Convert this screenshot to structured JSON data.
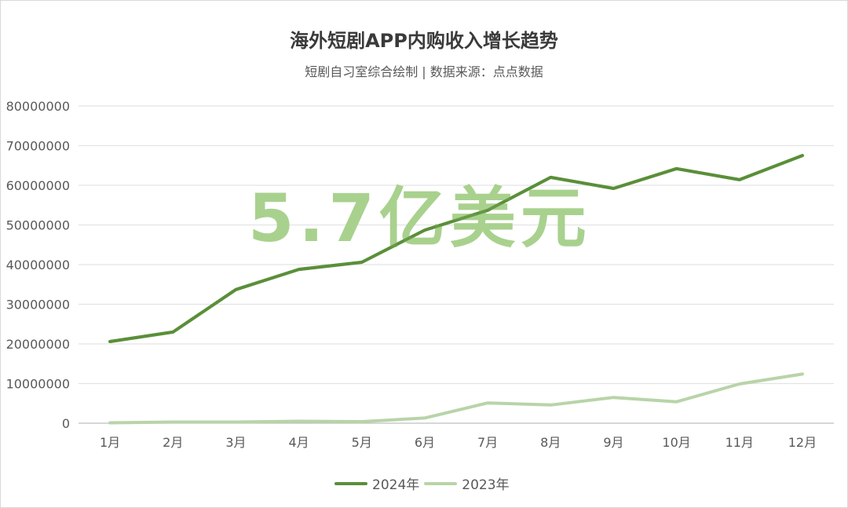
{
  "header": {
    "title": "海外短剧APP内购收入增长趋势",
    "subtitle": "短剧自习室综合绘制 | 数据来源：点点数据"
  },
  "overlay": {
    "text": "5.7亿美元",
    "color": "#a9d18e"
  },
  "legend": {
    "items": [
      {
        "label": "2024年",
        "color": "#5b8f3a"
      },
      {
        "label": "2023年",
        "color": "#b8d4a8"
      }
    ]
  },
  "axis": {
    "y_ticks": [
      "0",
      "10000000",
      "20000000",
      "30000000",
      "40000000",
      "50000000",
      "60000000",
      "70000000",
      "80000000"
    ],
    "x_ticks": [
      "1月",
      "2月",
      "3月",
      "4月",
      "5月",
      "6月",
      "7月",
      "8月",
      "9月",
      "10月",
      "11月",
      "12月"
    ]
  },
  "chart_data": {
    "type": "line",
    "title": "海外短剧APP内购收入增长趋势",
    "subtitle": "短剧自习室综合绘制 | 数据来源：点点数据",
    "annotation": "5.7亿美元",
    "xlabel": "",
    "ylabel": "",
    "ylim": [
      0,
      80000000
    ],
    "grid": true,
    "legend_position": "bottom",
    "categories": [
      "1月",
      "2月",
      "3月",
      "4月",
      "5月",
      "6月",
      "7月",
      "8月",
      "9月",
      "10月",
      "11月",
      "12月"
    ],
    "series": [
      {
        "name": "2024年",
        "color": "#5b8f3a",
        "values": [
          20600000,
          23000000,
          33700000,
          38800000,
          40600000,
          48700000,
          53700000,
          62000000,
          59200000,
          64200000,
          61400000,
          67500000
        ]
      },
      {
        "name": "2023年",
        "color": "#b8d4a8",
        "values": [
          100000,
          300000,
          300000,
          500000,
          400000,
          1300000,
          5100000,
          4600000,
          6500000,
          5400000,
          9900000,
          12400000
        ]
      }
    ]
  }
}
